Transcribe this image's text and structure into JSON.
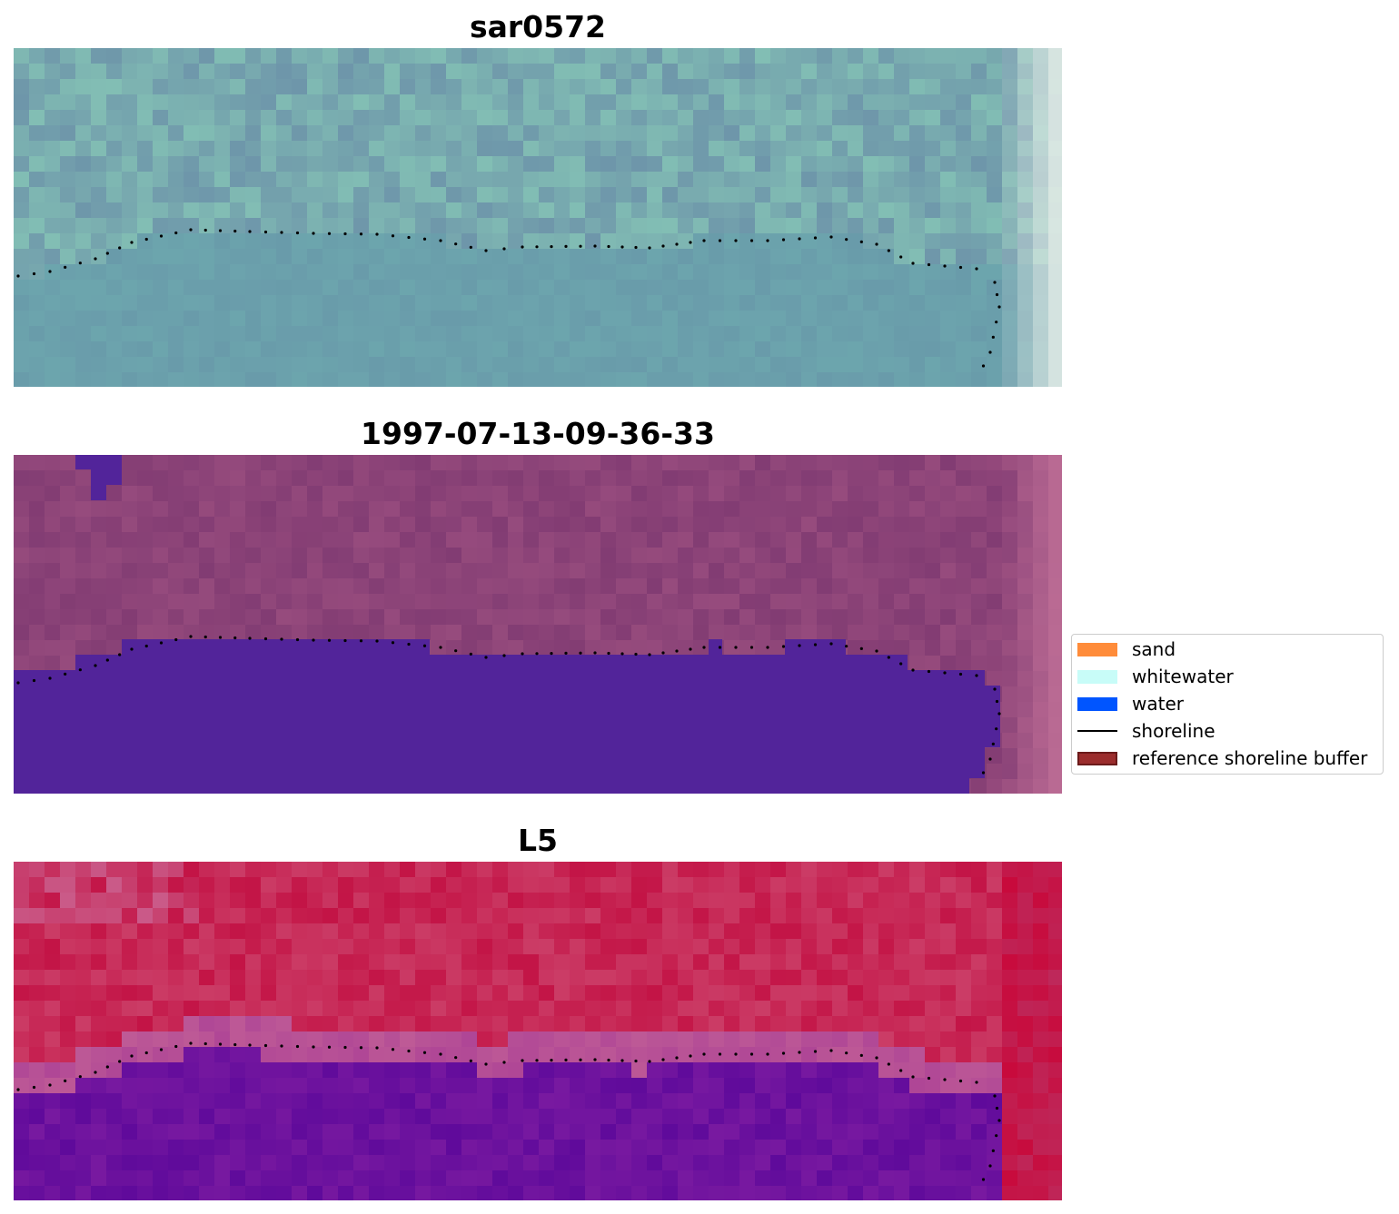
{
  "panels": [
    {
      "title": "sar0572",
      "scheme": "sar"
    },
    {
      "title": "1997-07-13-09-36-33",
      "scheme": "classified"
    },
    {
      "title": "L5",
      "scheme": "index"
    }
  ],
  "legend": {
    "items": [
      {
        "label": "sand",
        "color": "#ff8c3a",
        "type": "patch"
      },
      {
        "label": "whitewater",
        "color": "#c8fcf8",
        "type": "patch"
      },
      {
        "label": "water",
        "color": "#0055ff",
        "type": "patch"
      },
      {
        "label": "shoreline",
        "color": "#000000",
        "type": "line"
      },
      {
        "label": "reference shoreline buffer",
        "color": "#9b2d2d",
        "type": "patch-edge"
      }
    ]
  }
}
